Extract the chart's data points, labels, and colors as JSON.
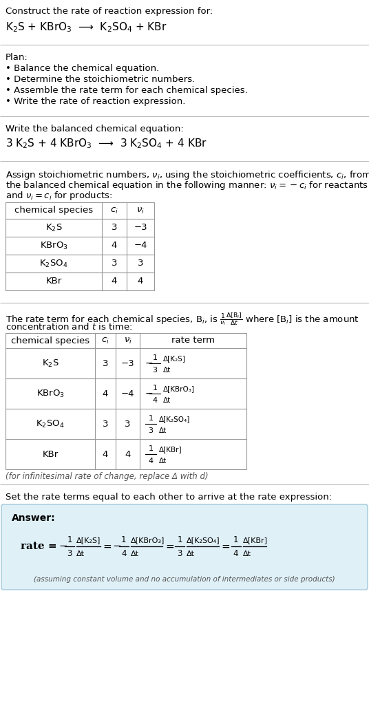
{
  "title_line1": "Construct the rate of reaction expression for:",
  "title_line2": "K$_2$S + KBrO$_3$  ⟶  K$_2$SO$_4$ + KBr",
  "plan_header": "Plan:",
  "plan_items": [
    "• Balance the chemical equation.",
    "• Determine the stoichiometric numbers.",
    "• Assemble the rate term for each chemical species.",
    "• Write the rate of reaction expression."
  ],
  "balanced_header": "Write the balanced chemical equation:",
  "balanced_eq": "3 K$_2$S + 4 KBrO$_3$  ⟶  3 K$_2$SO$_4$ + 4 KBr",
  "stoich_intro1": "Assign stoichiometric numbers, $\\nu_i$, using the stoichiometric coefficients, $c_i$, from",
  "stoich_intro2": "the balanced chemical equation in the following manner: $\\nu_i = -c_i$ for reactants",
  "stoich_intro3": "and $\\nu_i = c_i$ for products:",
  "table1_headers": [
    "chemical species",
    "$c_i$",
    "$\\nu_i$"
  ],
  "table1_rows": [
    [
      "K$_2$S",
      "3",
      "−3"
    ],
    [
      "KBrO$_3$",
      "4",
      "−4"
    ],
    [
      "K$_2$SO$_4$",
      "3",
      "3"
    ],
    [
      "KBr",
      "4",
      "4"
    ]
  ],
  "rate_intro1": "The rate term for each chemical species, B$_i$, is $\\frac{1}{\\nu_i}\\frac{\\Delta[\\mathrm{B}_i]}{\\Delta t}$ where [B$_i$] is the amount",
  "rate_intro2": "concentration and $t$ is time:",
  "table2_headers": [
    "chemical species",
    "$c_i$",
    "$\\nu_i$",
    "rate term"
  ],
  "table2_row_species": [
    "K$_2$S",
    "KBrO$_3$",
    "K$_2$SO$_4$",
    "KBr"
  ],
  "table2_row_ci": [
    "3",
    "4",
    "3",
    "4"
  ],
  "table2_row_vi": [
    "−3",
    "−4",
    "3",
    "4"
  ],
  "table2_rate_sign": [
    "−",
    "−",
    "",
    ""
  ],
  "table2_rate_num": [
    "1",
    "1",
    "1",
    "1"
  ],
  "table2_rate_den": [
    "3",
    "4",
    "3",
    "4"
  ],
  "table2_rate_bracket": [
    "Δ[K₂S]",
    "Δ[KBrO₃]",
    "Δ[K₂SO₄]",
    "Δ[KBr]"
  ],
  "table2_rate_dt": [
    "Δt",
    "Δt",
    "Δt",
    "Δt"
  ],
  "infinitesimal_note": "(for infinitesimal rate of change, replace Δ with d)",
  "set_rate_text": "Set the rate terms equal to each other to arrive at the rate expression:",
  "answer_label": "Answer:",
  "ans_rate_sign": [
    "−",
    "−",
    "",
    ""
  ],
  "ans_rate_num": [
    "1",
    "1",
    "1",
    "1"
  ],
  "ans_rate_den": [
    "3",
    "4",
    "3",
    "4"
  ],
  "ans_rate_bracket": [
    "Δ[K₂S]",
    "Δ[KBrO₃]",
    "Δ[K₂SO₄]",
    "Δ[KBr]"
  ],
  "ans_rate_dt": [
    "Δt",
    "Δt",
    "Δt",
    "Δt"
  ],
  "answer_note": "(assuming constant volume and no accumulation of intermediates or side products)",
  "bg_color": "#ffffff",
  "answer_box_color": "#dff0f7",
  "answer_box_border": "#a0c8dc",
  "text_color": "#000000",
  "sep_color": "#bbbbbb",
  "table_color": "#999999",
  "note_color": "#555555"
}
